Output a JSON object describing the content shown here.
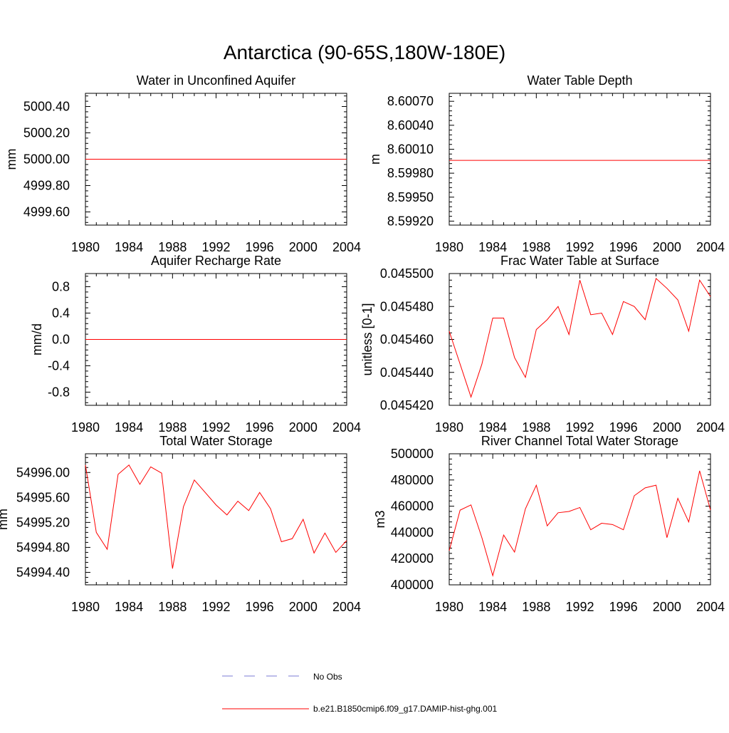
{
  "title": "Antarctica (90-65S,180W-180E)",
  "colors": {
    "model": "#ff0000",
    "obs": "#7b7bd6",
    "frame": "#000000"
  },
  "legend": [
    {
      "label": "No Obs",
      "style": "dashed",
      "color": "#7b7bd6"
    },
    {
      "label": "b.e21.B1850cmip6.f09_g17.DAMIP-hist-ghg.001",
      "style": "solid",
      "color": "#ff0000"
    }
  ],
  "chart_data": [
    {
      "type": "line",
      "title": "Water in Unconfined Aquifer",
      "ylabel": "mm",
      "xlim": [
        1980,
        2004
      ],
      "ylim": [
        4999.5,
        5000.5
      ],
      "xticks": [
        "1980",
        "1984",
        "1988",
        "1992",
        "1996",
        "2000",
        "2004"
      ],
      "yticks": [
        4999.6,
        4999.8,
        5000.0,
        5000.2,
        5000.4
      ],
      "ytick_labels": [
        "4999.60",
        "4999.80",
        "5000.00",
        "5000.20",
        "5000.40"
      ],
      "series": [
        {
          "x": [
            1980,
            1981,
            1982,
            1983,
            1984,
            1985,
            1986,
            1987,
            1988,
            1989,
            1990,
            1991,
            1992,
            1993,
            1994,
            1995,
            1996,
            1997,
            1998,
            1999,
            2000,
            2001,
            2002,
            2003,
            2004
          ],
          "values": [
            5000,
            5000,
            5000,
            5000,
            5000,
            5000,
            5000,
            5000,
            5000,
            5000,
            5000,
            5000,
            5000,
            5000,
            5000,
            5000,
            5000,
            5000,
            5000,
            5000,
            5000,
            5000,
            5000,
            5000,
            5000
          ]
        }
      ]
    },
    {
      "type": "line",
      "title": "Water Table Depth",
      "ylabel": "m",
      "xlim": [
        1980,
        2004
      ],
      "ylim": [
        8.59915,
        8.6008
      ],
      "xticks": [
        "1980",
        "1984",
        "1988",
        "1992",
        "1996",
        "2000",
        "2004"
      ],
      "yticks": [
        8.5992,
        8.5995,
        8.5998,
        8.6001,
        8.6004,
        8.6007
      ],
      "ytick_labels": [
        "8.59920",
        "8.59950",
        "8.59980",
        "8.60010",
        "8.60040",
        "8.60070"
      ],
      "series": [
        {
          "x": [
            1980,
            1981,
            1982,
            1983,
            1984,
            1985,
            1986,
            1987,
            1988,
            1989,
            1990,
            1991,
            1992,
            1993,
            1994,
            1995,
            1996,
            1997,
            1998,
            1999,
            2000,
            2001,
            2002,
            2003,
            2004
          ],
          "values": [
            8.59996,
            8.59996,
            8.59996,
            8.59996,
            8.59996,
            8.59996,
            8.59996,
            8.59996,
            8.59996,
            8.59996,
            8.59996,
            8.59996,
            8.59996,
            8.59996,
            8.59996,
            8.59996,
            8.59996,
            8.59996,
            8.59996,
            8.59996,
            8.59996,
            8.59996,
            8.59996,
            8.59996,
            8.59996
          ]
        }
      ]
    },
    {
      "type": "line",
      "title": "Aquifer Recharge Rate",
      "ylabel": "mm/d",
      "xlim": [
        1980,
        2004
      ],
      "ylim": [
        -1.0,
        1.0
      ],
      "xticks": [
        "1980",
        "1984",
        "1988",
        "1992",
        "1996",
        "2000",
        "2004"
      ],
      "yticks": [
        -0.8,
        -0.4,
        0.0,
        0.4,
        0.8
      ],
      "ytick_labels": [
        "-0.8",
        "-0.4",
        "0.0",
        "0.4",
        "0.8"
      ],
      "series": [
        {
          "x": [
            1980,
            1981,
            1982,
            1983,
            1984,
            1985,
            1986,
            1987,
            1988,
            1989,
            1990,
            1991,
            1992,
            1993,
            1994,
            1995,
            1996,
            1997,
            1998,
            1999,
            2000,
            2001,
            2002,
            2003,
            2004
          ],
          "values": [
            0,
            0,
            0,
            0,
            0,
            0,
            0,
            0,
            0,
            0,
            0,
            0,
            0,
            0,
            0,
            0,
            0,
            0,
            0,
            0,
            0,
            0,
            0,
            0,
            0
          ]
        }
      ]
    },
    {
      "type": "line",
      "title": "Frac Water Table at Surface",
      "ylabel": "unitless [0-1]",
      "xlim": [
        1980,
        2004
      ],
      "ylim": [
        0.04542,
        0.0455
      ],
      "xticks": [
        "1980",
        "1984",
        "1988",
        "1992",
        "1996",
        "2000",
        "2004"
      ],
      "yticks": [
        0.04542,
        0.04544,
        0.04546,
        0.04548,
        0.0455
      ],
      "ytick_labels": [
        "0.045420",
        "0.045440",
        "0.045460",
        "0.045480",
        "0.045500"
      ],
      "series": [
        {
          "x": [
            1980,
            1981,
            1982,
            1983,
            1984,
            1985,
            1986,
            1987,
            1988,
            1989,
            1990,
            1991,
            1992,
            1993,
            1994,
            1995,
            1996,
            1997,
            1998,
            1999,
            2000,
            2001,
            2002,
            2003,
            2004
          ],
          "values": [
            0.045465,
            0.045445,
            0.045425,
            0.045445,
            0.045473,
            0.045473,
            0.045449,
            0.045437,
            0.045466,
            0.045472,
            0.04548,
            0.045463,
            0.045496,
            0.045475,
            0.045476,
            0.045463,
            0.045483,
            0.04548,
            0.045472,
            0.045497,
            0.045491,
            0.045484,
            0.045465,
            0.045496,
            0.045486
          ]
        }
      ]
    },
    {
      "type": "line",
      "title": "Total Water Storage",
      "ylabel": "mm",
      "xlim": [
        1980,
        2004
      ],
      "ylim": [
        54994.2,
        54996.3
      ],
      "xticks": [
        "1980",
        "1984",
        "1988",
        "1992",
        "1996",
        "2000",
        "2004"
      ],
      "yticks": [
        54994.4,
        54994.8,
        54995.2,
        54995.6,
        54996.0
      ],
      "ytick_labels": [
        "54994.40",
        "54994.80",
        "54995.20",
        "54995.60",
        "54996.00"
      ],
      "series": [
        {
          "x": [
            1980,
            1981,
            1982,
            1983,
            1984,
            1985,
            1986,
            1987,
            1988,
            1989,
            1990,
            1991,
            1992,
            1993,
            1994,
            1995,
            1996,
            1997,
            1998,
            1999,
            2000,
            2001,
            2002,
            2003,
            2004
          ],
          "values": [
            54996.12,
            54995.04,
            54994.77,
            54995.97,
            54996.12,
            54995.81,
            54996.09,
            54995.99,
            54994.46,
            54995.45,
            54995.88,
            54995.68,
            54995.48,
            54995.32,
            54995.54,
            54995.39,
            54995.68,
            54995.42,
            54994.89,
            54994.94,
            54995.25,
            54994.71,
            54995.03,
            54994.72,
            54994.91
          ]
        }
      ]
    },
    {
      "type": "line",
      "title": "River Channel Total Water Storage",
      "ylabel": "m3",
      "xlim": [
        1980,
        2004
      ],
      "ylim": [
        400000,
        500000
      ],
      "xticks": [
        "1980",
        "1984",
        "1988",
        "1992",
        "1996",
        "2000",
        "2004"
      ],
      "yticks": [
        400000,
        420000,
        440000,
        460000,
        480000,
        500000
      ],
      "ytick_labels": [
        "400000",
        "420000",
        "440000",
        "460000",
        "480000",
        "500000"
      ],
      "series": [
        {
          "x": [
            1980,
            1981,
            1982,
            1983,
            1984,
            1985,
            1986,
            1987,
            1988,
            1989,
            1990,
            1991,
            1992,
            1993,
            1994,
            1995,
            1996,
            1997,
            1998,
            1999,
            2000,
            2001,
            2002,
            2003,
            2004
          ],
          "values": [
            426000,
            457000,
            461000,
            436000,
            407000,
            438000,
            425000,
            458000,
            476000,
            445000,
            455000,
            456000,
            459000,
            442000,
            447000,
            446000,
            442000,
            468000,
            474000,
            476000,
            436000,
            466000,
            448000,
            487000,
            457000
          ]
        }
      ]
    }
  ]
}
